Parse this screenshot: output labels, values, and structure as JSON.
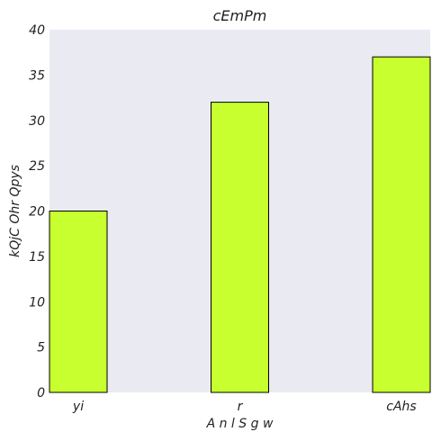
{
  "chart_data": {
    "type": "bar",
    "title": "cEmPm",
    "xlabel": "A n l S g w",
    "ylabel": "kQjC Ohr Qpys",
    "categories": [
      "yi",
      "r",
      "cAhs"
    ],
    "values": [
      20,
      32,
      37
    ],
    "ylim": [
      0,
      40
    ],
    "yticks": [
      0,
      5,
      10,
      15,
      20,
      25,
      30,
      35,
      40
    ],
    "bar_color": "#c8ff2e",
    "background_color": "#eaeaf2",
    "grid": false,
    "legend": "none"
  }
}
